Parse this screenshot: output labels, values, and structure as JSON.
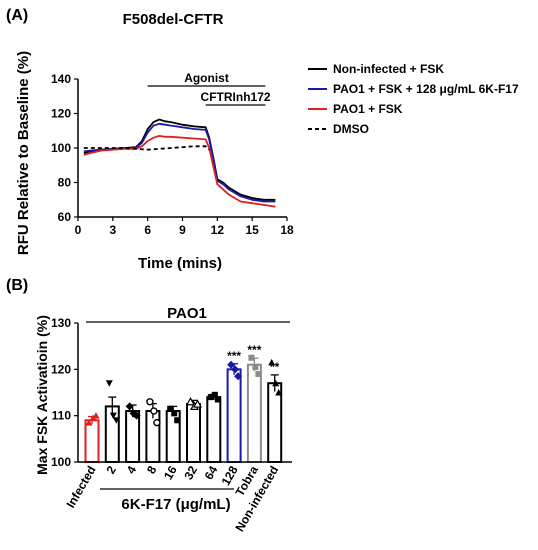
{
  "panel_a": {
    "label": "(A)",
    "title": "F508del-CFTR",
    "bars": [
      {
        "text": "Agonist",
        "from": 6,
        "to": 17
      },
      {
        "text": "CFTRInh172",
        "from": 11,
        "to": 17
      }
    ]
  },
  "panel_b": {
    "label": "(B)",
    "group_label": "PAO1",
    "category_group_label": "6K-F17 (μg/mL)"
  },
  "chart_data": [
    {
      "type": "line",
      "title": "F508del-CFTR",
      "xlabel": "Time (mins)",
      "ylabel": "RFU Relative to Baseline (%)",
      "xlim": [
        0,
        18
      ],
      "ylim": [
        60,
        140
      ],
      "xticks": [
        "0",
        "3",
        "6",
        "9",
        "12",
        "15",
        "18"
      ],
      "yticks": [
        "60",
        "80",
        "100",
        "120",
        "140"
      ],
      "legend_position": "right",
      "series": [
        {
          "name": "Non-infected + FSK",
          "color": "#000000",
          "dash": "solid",
          "x": [
            0.5,
            1,
            2,
            3,
            4,
            5,
            5.5,
            6,
            6.5,
            7,
            7.5,
            8,
            9,
            10,
            11,
            11.3,
            11.7,
            12,
            12.5,
            13,
            14,
            15,
            16,
            17
          ],
          "y": [
            97,
            98,
            99,
            99.5,
            100,
            100.5,
            104,
            111,
            115,
            116.5,
            115.5,
            115,
            113.5,
            112.5,
            112,
            106,
            93,
            82,
            80,
            77,
            73,
            71,
            70,
            70
          ]
        },
        {
          "name": "PAO1 + FSK + 128 μg/mL 6K-F17",
          "color": "#1a1aa6",
          "dash": "solid",
          "x": [
            0.5,
            1,
            2,
            3,
            4,
            5,
            5.5,
            6,
            6.5,
            7,
            7.5,
            8,
            9,
            10,
            11,
            11.3,
            11.7,
            12,
            12.5,
            13,
            14,
            15,
            16,
            17
          ],
          "y": [
            98,
            98.5,
            99,
            99.5,
            100,
            100,
            103,
            109,
            113,
            114,
            113.5,
            113,
            112,
            111,
            110.5,
            105,
            92,
            81,
            79,
            76,
            72,
            70,
            69,
            69
          ]
        },
        {
          "name": "PAO1 + FSK",
          "color": "#e02020",
          "dash": "solid",
          "x": [
            0.5,
            1,
            2,
            3,
            4,
            5,
            5.5,
            6,
            6.5,
            7,
            7.5,
            8,
            9,
            10,
            11,
            11.3,
            11.7,
            12,
            12.5,
            13,
            14,
            15,
            16,
            17
          ],
          "y": [
            96,
            97,
            98.5,
            99,
            99.5,
            99.5,
            101,
            104,
            106,
            107,
            106.5,
            106.5,
            106,
            105.5,
            105,
            100,
            88,
            79,
            76,
            73,
            69,
            68,
            67,
            66
          ]
        },
        {
          "name": "DMSO",
          "color": "#000000",
          "dash": "dashed",
          "x": [
            0.5,
            2,
            4,
            6,
            8,
            10,
            11,
            11.3
          ],
          "y": [
            100,
            100,
            100,
            99,
            100,
            101,
            101,
            99
          ]
        }
      ]
    },
    {
      "type": "bar",
      "xlabel": "6K-F17 (μg/mL)",
      "ylabel": "Max  FSK Activatioin (%)",
      "ylim": [
        100,
        130
      ],
      "yticks": [
        "100",
        "110",
        "120",
        "130"
      ],
      "categories": [
        "Infected",
        "2",
        "4",
        "8",
        "16",
        "32",
        "64",
        "128",
        "Tobra",
        "Non-infected"
      ],
      "values": [
        109,
        112,
        111,
        111,
        111,
        112.5,
        114,
        120,
        121,
        117
      ],
      "errors": [
        0.8,
        2,
        1.3,
        1.6,
        1,
        0.8,
        0.6,
        1.2,
        1.4,
        1.8
      ],
      "annotations": [
        "",
        "",
        "",
        "",
        "",
        "",
        "",
        "***",
        "***",
        "**"
      ],
      "bar_colors": [
        "#e02020",
        "#000000",
        "#000000",
        "#000000",
        "#000000",
        "#000000",
        "#000000",
        "#1a1aa6",
        "#8c8c8c",
        "#000000"
      ],
      "points": [
        [
          108.5,
          109.5,
          110
        ],
        [
          117,
          110,
          109
        ],
        [
          112,
          110.5,
          110
        ],
        [
          113,
          111,
          108.5
        ],
        [
          111.5,
          110.5,
          109
        ],
        [
          113,
          112,
          112.5
        ],
        [
          114,
          114.5,
          113.5
        ],
        [
          121,
          120,
          118.5
        ],
        [
          122.5,
          120.5,
          119
        ],
        [
          121.5,
          117,
          115
        ]
      ]
    }
  ]
}
